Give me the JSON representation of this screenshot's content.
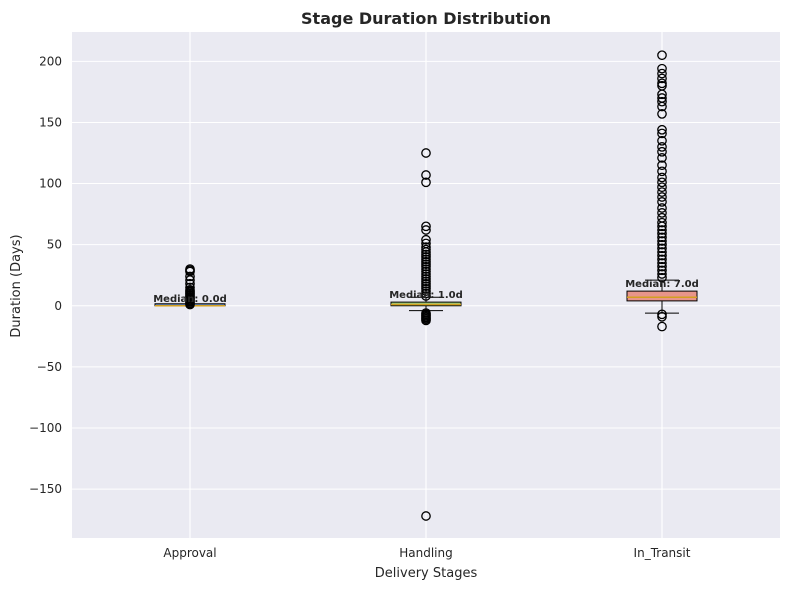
{
  "chart_data": {
    "type": "box",
    "title": "Stage Duration Distribution",
    "xlabel": "Delivery Stages",
    "ylabel": "Duration (Days)",
    "categories": [
      "Approval",
      "Handling",
      "In_Transit"
    ],
    "ylim": [
      -190,
      224
    ],
    "yticks": [
      -150,
      -100,
      -50,
      0,
      50,
      100,
      150,
      200
    ],
    "ytick_labels": [
      "−150",
      "−100",
      "−50",
      "0",
      "50",
      "100",
      "150",
      "200"
    ],
    "grid": true,
    "background": "#eaeaf2",
    "series": [
      {
        "category": "Approval",
        "median": 0,
        "q1": 0,
        "q3": 0,
        "whisker_low": 0,
        "whisker_high": 0,
        "median_label": "Median: 0.0d",
        "color": "#6a8fc8",
        "outliers": [
          30,
          29,
          28,
          24,
          21,
          18,
          15,
          13,
          12,
          11,
          10,
          9,
          8,
          7,
          6,
          5,
          4,
          3,
          2,
          1
        ]
      },
      {
        "category": "Handling",
        "median": 1,
        "q1": 0,
        "q3": 3,
        "whisker_low": -4,
        "whisker_high": 7,
        "median_label": "Median: 1.0d",
        "color": "#9ccc7a",
        "outliers": [
          125,
          107,
          101,
          65,
          62,
          54,
          51,
          48,
          46,
          44,
          42,
          40,
          38,
          36,
          34,
          32,
          30,
          28,
          26,
          24,
          22,
          20,
          18,
          16,
          14,
          12,
          10,
          8,
          -6,
          -7,
          -8,
          -9,
          -10,
          -11,
          -12,
          -172
        ]
      },
      {
        "category": "In_Transit",
        "median": 7,
        "q1": 4,
        "q3": 12,
        "whisker_low": -6,
        "whisker_high": 21,
        "median_label": "Median: 7.0d",
        "color": "#e8958a",
        "outliers": [
          205,
          194,
          190,
          186,
          182,
          180,
          173,
          170,
          167,
          163,
          157,
          144,
          141,
          135,
          130,
          126,
          121,
          115,
          110,
          105,
          101,
          97,
          93,
          89,
          85,
          80,
          76,
          72,
          68,
          65,
          62,
          59,
          56,
          53,
          50,
          47,
          44,
          41,
          38,
          35,
          32,
          29,
          26,
          23,
          -7,
          -9,
          -17
        ]
      }
    ]
  }
}
